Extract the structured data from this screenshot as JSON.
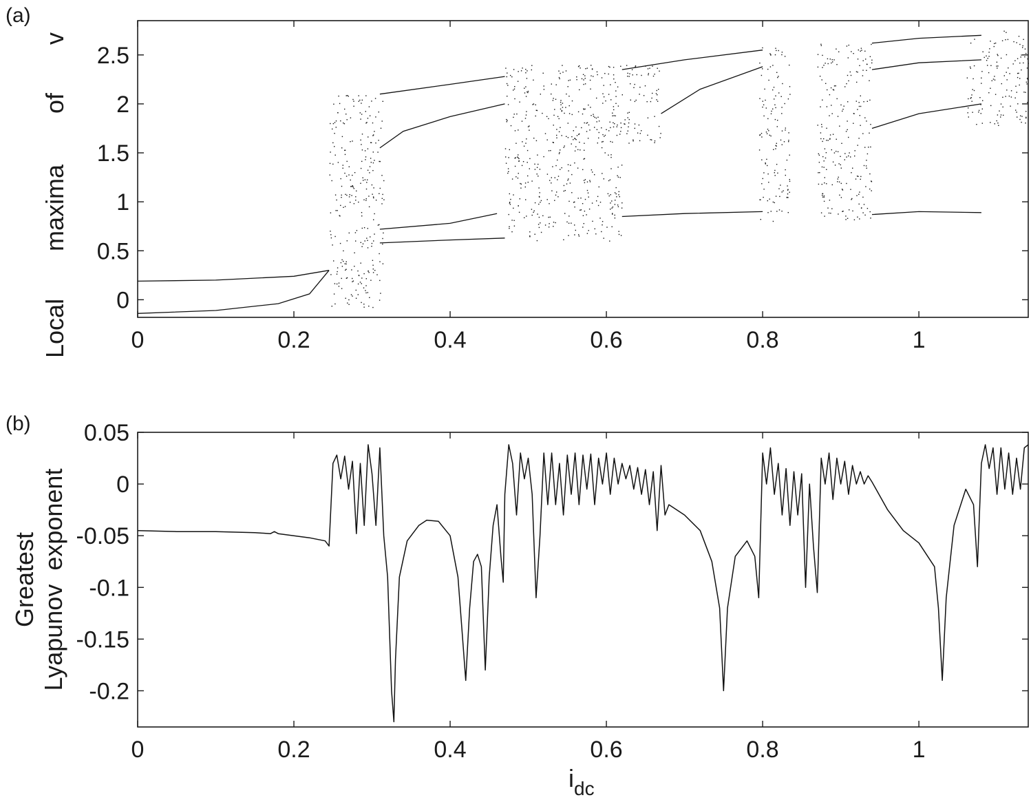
{
  "chart_data": [
    {
      "type": "scatter",
      "panel_label": "(a)",
      "title": "",
      "xlabel": "",
      "ylabel_words": [
        "Local",
        "maxima",
        "of",
        "v"
      ],
      "xlim": [
        0,
        1.14
      ],
      "ylim": [
        -0.18,
        2.85
      ],
      "xticks": [
        0,
        0.2,
        0.4,
        0.6,
        0.8,
        1
      ],
      "xtick_labels": [
        "0",
        "0.2",
        "0.4",
        "0.6",
        "0.8",
        "1"
      ],
      "yticks": [
        0,
        0.5,
        1,
        1.5,
        2,
        2.5
      ],
      "ytick_labels": [
        "0",
        "0.5",
        "1",
        "1.5",
        "2",
        "2.5"
      ],
      "branches": [
        {
          "name": "",
          "x": [
            0,
            0.1,
            0.2,
            0.245
          ],
          "y": [
            0.19,
            0.2,
            0.24,
            0.3
          ]
        },
        {
          "name": "",
          "x": [
            0,
            0.1,
            0.18,
            0.22,
            0.245
          ],
          "y": [
            -0.14,
            -0.11,
            -0.04,
            0.06,
            0.3
          ]
        },
        {
          "name": "",
          "x": [
            0.31,
            0.4,
            0.47
          ],
          "y": [
            0.58,
            0.61,
            0.63
          ]
        },
        {
          "name": "",
          "x": [
            0.31,
            0.4,
            0.46
          ],
          "y": [
            0.72,
            0.78,
            0.88
          ]
        },
        {
          "name": "",
          "x": [
            0.31,
            0.34,
            0.4,
            0.47
          ],
          "y": [
            1.55,
            1.72,
            1.87,
            2.0
          ]
        },
        {
          "name": "",
          "x": [
            0.31,
            0.4,
            0.47
          ],
          "y": [
            2.1,
            2.2,
            2.28
          ]
        },
        {
          "name": "",
          "x": [
            0.62,
            0.7,
            0.8
          ],
          "y": [
            0.85,
            0.88,
            0.9
          ]
        },
        {
          "name": "",
          "x": [
            0.62,
            0.7,
            0.8
          ],
          "y": [
            2.35,
            2.45,
            2.55
          ]
        },
        {
          "name": "",
          "x": [
            0.67,
            0.72,
            0.8
          ],
          "y": [
            1.9,
            2.15,
            2.38
          ]
        },
        {
          "name": "",
          "x": [
            0.94,
            1.0,
            1.08
          ],
          "y": [
            0.87,
            0.9,
            0.89
          ]
        },
        {
          "name": "",
          "x": [
            0.94,
            1.0,
            1.08
          ],
          "y": [
            1.75,
            1.9,
            2.0
          ]
        },
        {
          "name": "",
          "x": [
            0.94,
            1.0,
            1.08
          ],
          "y": [
            2.35,
            2.42,
            2.45
          ]
        },
        {
          "name": "",
          "x": [
            0.94,
            1.0,
            1.08
          ],
          "y": [
            2.62,
            2.67,
            2.7
          ]
        }
      ],
      "chaotic_bands": [
        {
          "x": [
            0.245,
            0.315
          ],
          "y": [
            -0.08,
            2.1
          ]
        },
        {
          "x": [
            0.47,
            0.62
          ],
          "y": [
            0.6,
            2.4
          ]
        },
        {
          "x": [
            0.62,
            0.67
          ],
          "y": [
            1.6,
            2.4
          ]
        },
        {
          "x": [
            0.795,
            0.835
          ],
          "y": [
            0.8,
            2.58
          ]
        },
        {
          "x": [
            0.87,
            0.94
          ],
          "y": [
            0.82,
            2.62
          ]
        },
        {
          "x": [
            1.06,
            1.14
          ],
          "y": [
            1.78,
            2.75
          ]
        }
      ]
    },
    {
      "type": "line",
      "panel_label": "(b)",
      "title": "",
      "xlabel": "i",
      "xlabel_sub": "dc",
      "ylabel_lines": [
        "Greatest",
        "Lyapunov  exponent"
      ],
      "xlim": [
        0,
        1.14
      ],
      "ylim": [
        -0.235,
        0.05
      ],
      "xticks": [
        0,
        0.2,
        0.4,
        0.6,
        0.8,
        1
      ],
      "xtick_labels": [
        "0",
        "0.2",
        "0.4",
        "0.6",
        "0.8",
        "1"
      ],
      "yticks": [
        0.05,
        0,
        -0.05,
        -0.1,
        -0.15,
        -0.2
      ],
      "ytick_labels": [
        "0.05",
        "0",
        "-0.05",
        "-0.1",
        "-0.15",
        "-0.2"
      ],
      "series": [
        {
          "name": "",
          "x": [
            0,
            0.05,
            0.1,
            0.15,
            0.17,
            0.175,
            0.18,
            0.2,
            0.22,
            0.24,
            0.245,
            0.25,
            0.255,
            0.26,
            0.265,
            0.27,
            0.275,
            0.28,
            0.285,
            0.29,
            0.295,
            0.3,
            0.305,
            0.31,
            0.315,
            0.32,
            0.325,
            0.328,
            0.33,
            0.335,
            0.345,
            0.36,
            0.37,
            0.385,
            0.4,
            0.41,
            0.415,
            0.42,
            0.425,
            0.43,
            0.435,
            0.44,
            0.445,
            0.45,
            0.455,
            0.46,
            0.465,
            0.468,
            0.47,
            0.475,
            0.48,
            0.485,
            0.49,
            0.495,
            0.5,
            0.505,
            0.51,
            0.515,
            0.52,
            0.525,
            0.53,
            0.535,
            0.54,
            0.545,
            0.55,
            0.555,
            0.56,
            0.565,
            0.57,
            0.575,
            0.58,
            0.585,
            0.59,
            0.595,
            0.6,
            0.605,
            0.61,
            0.615,
            0.62,
            0.625,
            0.63,
            0.635,
            0.64,
            0.645,
            0.65,
            0.655,
            0.66,
            0.665,
            0.67,
            0.675,
            0.68,
            0.7,
            0.72,
            0.735,
            0.745,
            0.75,
            0.755,
            0.765,
            0.78,
            0.79,
            0.795,
            0.8,
            0.805,
            0.81,
            0.815,
            0.82,
            0.825,
            0.83,
            0.835,
            0.84,
            0.845,
            0.85,
            0.855,
            0.86,
            0.865,
            0.87,
            0.875,
            0.88,
            0.885,
            0.89,
            0.895,
            0.9,
            0.905,
            0.91,
            0.915,
            0.92,
            0.925,
            0.93,
            0.935,
            0.94,
            0.96,
            0.98,
            1.0,
            1.02,
            1.025,
            1.03,
            1.035,
            1.045,
            1.06,
            1.07,
            1.075,
            1.08,
            1.085,
            1.09,
            1.095,
            1.1,
            1.105,
            1.11,
            1.115,
            1.12,
            1.125,
            1.13,
            1.135,
            1.14
          ],
          "values": [
            -0.045,
            -0.046,
            -0.046,
            -0.047,
            -0.048,
            -0.046,
            -0.048,
            -0.05,
            -0.052,
            -0.055,
            -0.06,
            0.02,
            0.028,
            0.005,
            0.027,
            -0.005,
            0.022,
            -0.048,
            0.02,
            -0.04,
            0.038,
            0.01,
            -0.04,
            0.035,
            -0.05,
            -0.09,
            -0.2,
            -0.23,
            -0.17,
            -0.09,
            -0.055,
            -0.04,
            -0.035,
            -0.036,
            -0.05,
            -0.09,
            -0.14,
            -0.19,
            -0.12,
            -0.075,
            -0.068,
            -0.08,
            -0.18,
            -0.09,
            -0.04,
            -0.02,
            -0.07,
            -0.095,
            -0.01,
            0.038,
            0.02,
            -0.03,
            0.03,
            0.005,
            0.025,
            -0.01,
            -0.11,
            -0.05,
            0.03,
            -0.02,
            0.03,
            -0.02,
            0.02,
            -0.03,
            0.028,
            -0.01,
            0.03,
            -0.02,
            0.028,
            -0.005,
            0.029,
            -0.02,
            0.025,
            0.0,
            0.03,
            -0.01,
            0.025,
            0.0,
            0.02,
            0.005,
            0.018,
            -0.005,
            0.016,
            -0.01,
            0.014,
            -0.02,
            0.012,
            -0.045,
            0.018,
            -0.03,
            -0.02,
            -0.03,
            -0.045,
            -0.075,
            -0.12,
            -0.2,
            -0.12,
            -0.07,
            -0.055,
            -0.07,
            -0.11,
            0.03,
            0.0,
            0.035,
            -0.01,
            0.02,
            -0.03,
            0.015,
            -0.04,
            0.012,
            -0.03,
            0.01,
            -0.1,
            0.0,
            -0.06,
            -0.105,
            0.025,
            0.0,
            0.03,
            -0.015,
            0.025,
            0.0,
            0.022,
            -0.01,
            0.018,
            0.0,
            0.012,
            0.0,
            0.008,
            0.002,
            -0.025,
            -0.045,
            -0.057,
            -0.08,
            -0.12,
            -0.19,
            -0.11,
            -0.04,
            -0.005,
            -0.02,
            -0.08,
            0.02,
            0.038,
            0.015,
            0.035,
            -0.01,
            0.035,
            -0.005,
            0.03,
            -0.01,
            0.025,
            -0.005,
            0.035,
            0.038
          ]
        }
      ]
    }
  ]
}
